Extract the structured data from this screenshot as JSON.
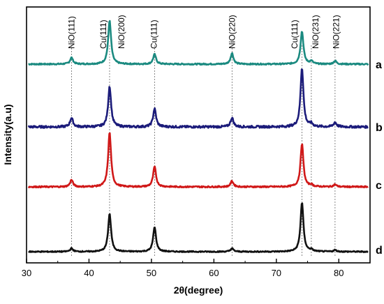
{
  "chart_data": {
    "type": "line",
    "xlabel": "2θ(degree)",
    "ylabel": "Intensity(a.u)",
    "xlim": [
      30,
      85
    ],
    "xticks": [
      "30",
      "40",
      "50",
      "60",
      "70",
      "80"
    ],
    "yticks_shown": false,
    "grid": false,
    "legend": "none",
    "reference_lines": [
      37.2,
      43.3,
      50.5,
      62.9,
      74.1,
      75.6,
      79.4
    ],
    "peak_labels": [
      {
        "text": "NiO(111)",
        "x": 37.2
      },
      {
        "text": "Cu(111)",
        "x": 42.3
      },
      {
        "text": "NiO(200)",
        "x": 45.2
      },
      {
        "text": "Cu(111)",
        "x": 50.4
      },
      {
        "text": "NiO(220)",
        "x": 62.9
      },
      {
        "text": "Cu(111)",
        "x": 72.9
      },
      {
        "text": "NiO(231)",
        "x": 76.3
      },
      {
        "text": "NiO(221)",
        "x": 79.6
      }
    ],
    "series": [
      {
        "name": "a",
        "color": "#1b8a80",
        "baseline": 0.2,
        "noise": 0.012,
        "peaks": [
          [
            37.2,
            0.12
          ],
          [
            43.3,
            0.8
          ],
          [
            50.5,
            0.18
          ],
          [
            62.9,
            0.2
          ],
          [
            74.1,
            0.6
          ],
          [
            75.6,
            0.05
          ],
          [
            79.4,
            0.06
          ]
        ]
      },
      {
        "name": "b",
        "color": "#1b1b7a",
        "baseline": 0.2,
        "noise": 0.012,
        "peaks": [
          [
            37.2,
            0.1
          ],
          [
            43.3,
            0.45
          ],
          [
            50.5,
            0.2
          ],
          [
            62.9,
            0.1
          ],
          [
            74.1,
            0.65
          ],
          [
            75.6,
            0.03
          ],
          [
            79.4,
            0.05
          ]
        ]
      },
      {
        "name": "c",
        "color": "#d01818",
        "baseline": 0.2,
        "noise": 0.012,
        "peaks": [
          [
            37.2,
            0.12
          ],
          [
            43.3,
            0.95
          ],
          [
            50.5,
            0.35
          ],
          [
            62.9,
            0.1
          ],
          [
            74.1,
            0.75
          ],
          [
            75.6,
            0.03
          ],
          [
            79.4,
            0.04
          ]
        ]
      },
      {
        "name": "d",
        "color": "#111111",
        "baseline": 0.2,
        "noise": 0.01,
        "peaks": [
          [
            37.2,
            0.06
          ],
          [
            43.3,
            0.7
          ],
          [
            50.5,
            0.45
          ],
          [
            62.9,
            0.06
          ],
          [
            74.1,
            0.9
          ],
          [
            75.6,
            0.03
          ],
          [
            79.4,
            0.03
          ]
        ]
      }
    ]
  }
}
